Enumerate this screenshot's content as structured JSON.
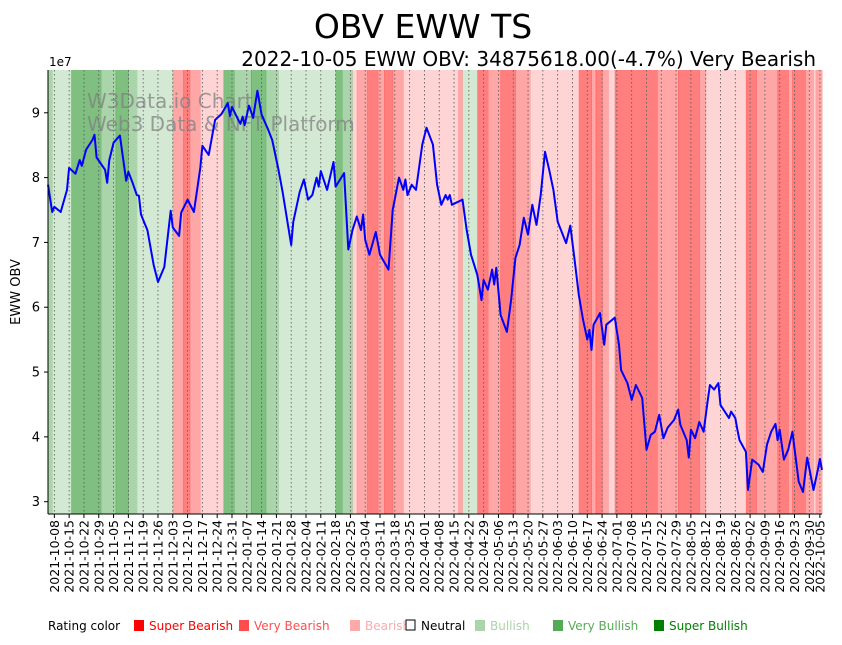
{
  "title": "OBV EWW TS",
  "subtitle": "2022-10-05 EWW OBV: 34875618.00(-4.7%) Very Bearish",
  "watermark": [
    "W3Data.io Chart",
    "Web3 Data & NFT Platform"
  ],
  "legend": {
    "label": "Rating color",
    "items": [
      {
        "key": "SB",
        "label": "Super Bearish",
        "color": "#ff0000"
      },
      {
        "key": "VB",
        "label": "Very Bearish",
        "color": "#ff4d4d"
      },
      {
        "key": "B",
        "label": "Bearish",
        "color": "#ffaaaa"
      },
      {
        "key": "N",
        "label": "Neutral",
        "color": "#000000"
      },
      {
        "key": "Bu",
        "label": "Bullish",
        "color": "#aad4aa"
      },
      {
        "key": "VBu",
        "label": "Very Bullish",
        "color": "#55aa55"
      },
      {
        "key": "SBu",
        "label": "Super Bullish",
        "color": "#008000"
      }
    ]
  },
  "chart_data": {
    "type": "line",
    "title": "OBV EWW TS",
    "ylabel": "EWW OBV",
    "y_scale_label": "1e7",
    "x_origin": "2021-10-05",
    "x_units": "days since x_origin",
    "xlim": [
      0,
      366
    ],
    "ylim": [
      2.81,
      9.66
    ],
    "yticks": [
      3,
      4,
      5,
      6,
      7,
      8,
      9
    ],
    "grid": "vertical dotted at x ticks",
    "line_color": "#0000ff",
    "xticks": [
      "2021-10-08",
      "2021-10-15",
      "2021-10-22",
      "2021-10-29",
      "2021-11-05",
      "2021-11-12",
      "2021-11-19",
      "2021-11-26",
      "2021-12-03",
      "2021-12-10",
      "2021-12-17",
      "2021-12-24",
      "2021-12-31",
      "2022-01-07",
      "2022-01-14",
      "2022-01-21",
      "2022-01-28",
      "2022-02-04",
      "2022-02-11",
      "2022-02-18",
      "2022-02-25",
      "2022-03-04",
      "2022-03-11",
      "2022-03-18",
      "2022-03-25",
      "2022-04-01",
      "2022-04-08",
      "2022-04-15",
      "2022-04-22",
      "2022-04-29",
      "2022-05-06",
      "2022-05-13",
      "2022-05-20",
      "2022-05-27",
      "2022-06-03",
      "2022-06-10",
      "2022-06-17",
      "2022-06-24",
      "2022-07-01",
      "2022-07-08",
      "2022-07-15",
      "2022-07-22",
      "2022-07-29",
      "2022-08-05",
      "2022-08-12",
      "2022-08-19",
      "2022-08-26",
      "2022-09-02",
      "2022-09-09",
      "2022-09-16",
      "2022-09-23",
      "2022-09-30",
      "2022-10-05"
    ],
    "series": [
      {
        "name": "EWW OBV (x1e7)",
        "x": [
          0,
          2,
          3,
          6,
          9,
          10,
          13,
          15,
          16,
          18,
          21,
          22,
          23,
          27,
          28,
          29,
          31,
          34,
          37,
          38,
          40,
          42,
          43,
          44,
          47,
          50,
          52,
          55,
          58,
          59,
          62,
          63,
          66,
          69,
          72,
          73,
          76,
          79,
          82,
          85,
          86,
          87,
          90,
          91,
          92,
          93,
          95,
          96,
          97,
          99,
          101,
          104,
          106,
          109,
          111,
          115,
          116,
          119,
          121,
          123,
          125,
          127,
          128,
          129,
          132,
          135,
          136,
          140,
          142,
          144,
          146,
          148,
          149,
          150,
          152,
          155,
          157,
          161,
          163,
          166,
          168,
          169,
          170,
          172,
          174,
          177,
          179,
          182,
          184,
          186,
          188,
          189,
          190,
          191,
          196,
          198,
          200,
          203,
          205,
          206,
          208,
          210,
          211,
          212,
          214,
          217,
          219,
          221,
          223,
          225,
          227,
          229,
          231,
          233,
          235,
          237,
          239,
          241,
          245,
          247,
          249,
          251,
          253,
          255,
          256,
          257,
          258,
          261,
          263,
          264,
          268,
          270,
          271,
          274,
          276,
          278,
          281,
          283,
          285,
          287,
          289,
          291,
          293,
          296,
          298,
          299,
          302,
          303,
          304,
          306,
          308,
          310,
          312,
          313,
          315,
          317,
          318,
          322,
          323,
          325,
          326,
          327,
          330,
          331,
          333,
          336,
          338,
          340,
          342,
          344,
          345,
          346,
          348,
          350,
          352,
          355,
          357,
          359,
          362,
          364,
          365,
          366
        ],
        "y": [
          7.89,
          7.47,
          7.55,
          7.47,
          7.81,
          8.15,
          8.06,
          8.27,
          8.18,
          8.43,
          8.58,
          8.66,
          8.31,
          8.12,
          7.92,
          8.27,
          8.54,
          8.65,
          7.95,
          8.09,
          7.92,
          7.73,
          7.72,
          7.43,
          7.19,
          6.65,
          6.39,
          6.62,
          7.49,
          7.23,
          7.1,
          7.46,
          7.66,
          7.47,
          8.15,
          8.49,
          8.35,
          8.89,
          8.98,
          9.15,
          8.95,
          9.09,
          8.89,
          8.83,
          8.94,
          8.81,
          9.11,
          9.02,
          8.92,
          9.34,
          8.97,
          8.75,
          8.58,
          8.12,
          7.77,
          6.96,
          7.32,
          7.78,
          7.97,
          7.66,
          7.73,
          8.0,
          7.86,
          8.1,
          7.81,
          8.24,
          7.86,
          8.07,
          6.89,
          7.19,
          7.4,
          7.19,
          7.43,
          7.04,
          6.81,
          7.16,
          6.81,
          6.58,
          7.5,
          8.0,
          7.81,
          7.97,
          7.73,
          7.89,
          7.81,
          8.51,
          8.77,
          8.51,
          7.89,
          7.58,
          7.73,
          7.66,
          7.73,
          7.58,
          7.66,
          7.19,
          6.81,
          6.5,
          6.11,
          6.42,
          6.27,
          6.58,
          6.35,
          6.61,
          5.88,
          5.62,
          6.11,
          6.76,
          6.96,
          7.38,
          7.12,
          7.58,
          7.27,
          7.73,
          8.4,
          8.12,
          7.81,
          7.32,
          6.99,
          7.26,
          6.73,
          6.19,
          5.81,
          5.5,
          5.65,
          5.34,
          5.73,
          5.91,
          5.42,
          5.73,
          5.84,
          5.42,
          5.03,
          4.83,
          4.57,
          4.8,
          4.6,
          3.8,
          4.03,
          4.08,
          4.34,
          3.98,
          4.14,
          4.26,
          4.42,
          4.19,
          3.95,
          3.68,
          4.11,
          3.98,
          4.23,
          4.08,
          4.57,
          4.8,
          4.73,
          4.83,
          4.49,
          4.29,
          4.39,
          4.29,
          4.11,
          3.95,
          3.77,
          3.18,
          3.65,
          3.57,
          3.46,
          3.88,
          4.08,
          4.2,
          3.95,
          4.11,
          3.65,
          3.8,
          4.08,
          3.31,
          3.15,
          3.68,
          3.18,
          3.49,
          3.66,
          3.49
        ]
      }
    ],
    "rating_bands": [
      [
        0,
        2,
        "VBu"
      ],
      [
        2,
        11,
        "Bu"
      ],
      [
        11,
        25,
        "SBu"
      ],
      [
        25,
        32,
        "VBu"
      ],
      [
        32,
        38,
        "SBu"
      ],
      [
        38,
        42,
        "VBu"
      ],
      [
        42,
        59,
        "Bu"
      ],
      [
        59,
        64,
        "VB"
      ],
      [
        64,
        67,
        "SB"
      ],
      [
        67,
        72,
        "VB"
      ],
      [
        72,
        83,
        "B"
      ],
      [
        83,
        88,
        "SBu"
      ],
      [
        88,
        96,
        "VBu"
      ],
      [
        96,
        103,
        "SBu"
      ],
      [
        103,
        109,
        "VBu"
      ],
      [
        109,
        136,
        "Bu"
      ],
      [
        136,
        139,
        "SBu"
      ],
      [
        139,
        144,
        "VBu"
      ],
      [
        144,
        146,
        "B"
      ],
      [
        146,
        151,
        "VB"
      ],
      [
        151,
        156,
        "SB"
      ],
      [
        156,
        159,
        "VB"
      ],
      [
        159,
        163,
        "SB"
      ],
      [
        163,
        168,
        "VB"
      ],
      [
        168,
        194,
        "B"
      ],
      [
        194,
        196,
        "VB"
      ],
      [
        196,
        203,
        "Bu"
      ],
      [
        203,
        208,
        "SB"
      ],
      [
        208,
        214,
        "VB"
      ],
      [
        214,
        221,
        "SB"
      ],
      [
        221,
        228,
        "VB"
      ],
      [
        228,
        251,
        "B"
      ],
      [
        251,
        257,
        "SB"
      ],
      [
        257,
        259,
        "VB"
      ],
      [
        259,
        262,
        "SB"
      ],
      [
        262,
        265,
        "VB"
      ],
      [
        265,
        268,
        "B"
      ],
      [
        268,
        288,
        "SB"
      ],
      [
        288,
        298,
        "VB"
      ],
      [
        298,
        308,
        "SB"
      ],
      [
        308,
        311,
        "VB"
      ],
      [
        311,
        330,
        "B"
      ],
      [
        330,
        335,
        "SB"
      ],
      [
        335,
        345,
        "VB"
      ],
      [
        345,
        350,
        "SB"
      ],
      [
        350,
        352,
        "VB"
      ],
      [
        352,
        358,
        "SB"
      ],
      [
        358,
        362,
        "VB"
      ],
      [
        362,
        363,
        "B"
      ],
      [
        363,
        366,
        "VB"
      ]
    ]
  }
}
